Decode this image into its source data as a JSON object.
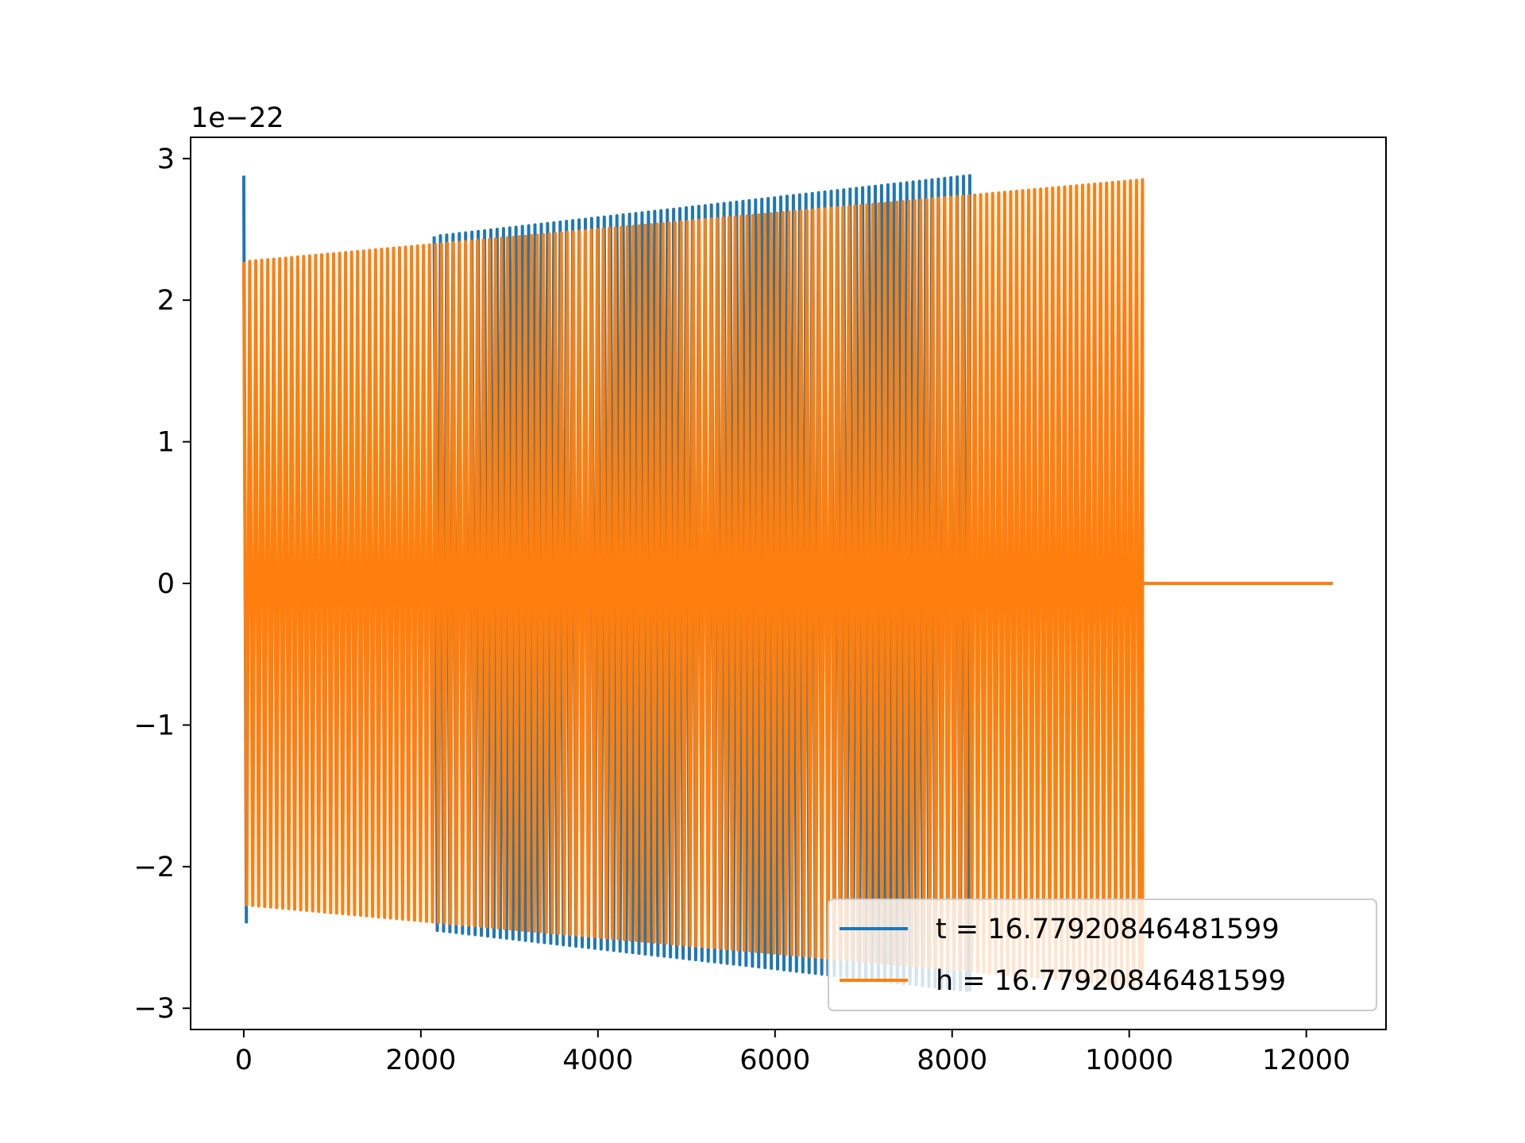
{
  "chart_data": {
    "type": "line",
    "title": "",
    "xlabel": "",
    "ylabel": "",
    "offset_text": "1e−22",
    "xlim": [
      -600,
      12900
    ],
    "ylim": [
      -3.15,
      3.15
    ],
    "xticks": [
      0,
      2000,
      4000,
      6000,
      8000,
      10000,
      12000
    ],
    "xtick_labels": [
      "0",
      "2000",
      "4000",
      "6000",
      "8000",
      "10000",
      "12000"
    ],
    "yticks": [
      -3,
      -2,
      -1,
      0,
      1,
      2,
      3
    ],
    "ytick_labels": [
      "−3",
      "−2",
      "−1",
      "0",
      "1",
      "2",
      "3"
    ],
    "grid": false,
    "legend_position": "lower-right",
    "series": [
      {
        "name": "t = 16.77920846481599",
        "color": "#1f77b4",
        "style": "chirp oscillation",
        "x_start": 0,
        "x_end": 8200,
        "peak_amplitude_start": 2.45,
        "peak_amplitude_end": 2.88,
        "segments": [
          {
            "x_start": 0,
            "x_end": 30,
            "max": 2.88,
            "min": -2.4
          },
          {
            "x_start": 2150,
            "x_end": 8200,
            "max_start": 2.45,
            "max_end": 2.88,
            "min_start": -2.45,
            "min_end": -2.88,
            "cycles": 85
          }
        ]
      },
      {
        "name": "h = 16.77920846481599",
        "color": "#ff7f0e",
        "style": "chirp oscillation",
        "x_start": 0,
        "x_end": 12300,
        "segments": [
          {
            "x_start": 0,
            "x_end": 10150,
            "max_start": 2.27,
            "max_end": 2.85,
            "min_start": -2.27,
            "min_end": -2.85,
            "cycles": 150
          },
          {
            "x_start": 10150,
            "x_end": 12300,
            "max": 0.0,
            "min": 0.0
          }
        ]
      }
    ]
  }
}
